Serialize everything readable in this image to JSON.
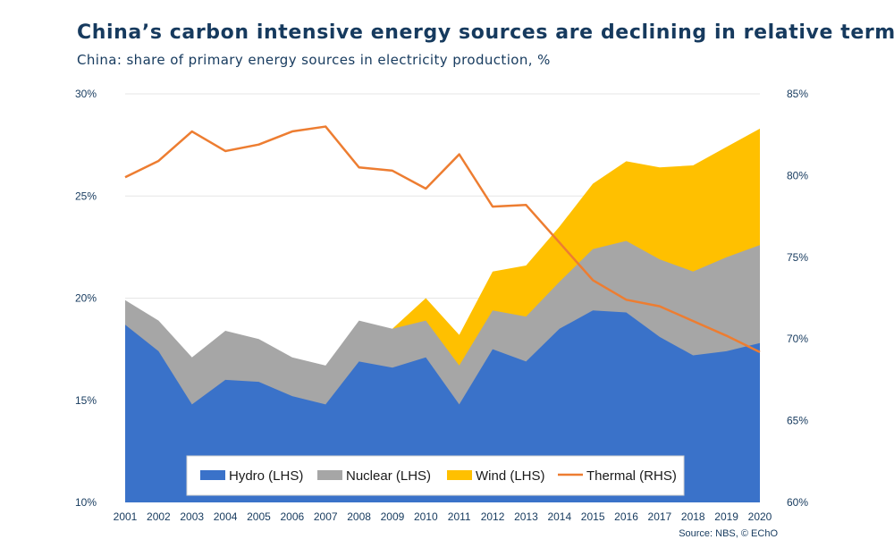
{
  "chart_data": {
    "type": "area",
    "title": "China’s carbon intensive energy sources are declining in relative terms",
    "subtitle": "China: share of primary energy sources in electricity production, %",
    "source": "Source: NBS, © EChO",
    "categories": [
      "2001",
      "2002",
      "2003",
      "2004",
      "2005",
      "2006",
      "2007",
      "2008",
      "2009",
      "2010",
      "2011",
      "2012",
      "2013",
      "2014",
      "2015",
      "2016",
      "2017",
      "2018",
      "2019",
      "2020"
    ],
    "y_left": {
      "range": [
        10,
        30
      ],
      "ticks": [
        "10%",
        "15%",
        "20%",
        "25%",
        "30%"
      ],
      "tick_values": [
        10,
        15,
        20,
        25,
        30
      ]
    },
    "y_right": {
      "range": [
        60,
        85
      ],
      "ticks": [
        "60%",
        "65%",
        "70%",
        "75%",
        "80%",
        "85%"
      ],
      "tick_values": [
        60,
        65,
        70,
        75,
        80,
        85
      ]
    },
    "series": [
      {
        "name": "Hydro (LHS)",
        "axis": "left",
        "color": "#3a72c9",
        "values": [
          18.7,
          17.4,
          14.8,
          16.0,
          15.9,
          15.2,
          14.8,
          16.9,
          16.6,
          17.1,
          14.8,
          17.5,
          16.9,
          18.5,
          19.4,
          19.3,
          18.1,
          17.2,
          17.4,
          17.8
        ]
      },
      {
        "name": "Nuclear (LHS)",
        "axis": "left",
        "color": "#a6a6a6",
        "values": [
          19.9,
          18.9,
          17.1,
          18.4,
          18.0,
          17.1,
          16.7,
          18.9,
          18.5,
          18.9,
          16.7,
          19.4,
          19.1,
          20.8,
          22.4,
          22.8,
          21.9,
          21.3,
          22.0,
          22.6
        ]
      },
      {
        "name": "Wind (LHS)",
        "axis": "left",
        "color": "#ffc000",
        "values": [
          null,
          null,
          null,
          null,
          null,
          null,
          null,
          null,
          18.5,
          20.0,
          18.2,
          21.3,
          21.6,
          23.5,
          25.6,
          26.7,
          26.4,
          26.5,
          27.4,
          28.3
        ]
      },
      {
        "name": "Thermal (RHS)",
        "axis": "right",
        "color": "#ed7d31",
        "values": [
          79.9,
          80.9,
          82.7,
          81.5,
          81.9,
          82.7,
          83.0,
          80.5,
          80.3,
          79.2,
          81.3,
          78.1,
          78.2,
          75.9,
          73.6,
          72.4,
          72.0,
          71.1,
          70.2,
          69.2
        ]
      }
    ],
    "legend": {
      "position": "bottom",
      "entries": [
        "Hydro (LHS)",
        "Nuclear (LHS)",
        "Wind (LHS)",
        "Thermal (RHS)"
      ]
    }
  }
}
